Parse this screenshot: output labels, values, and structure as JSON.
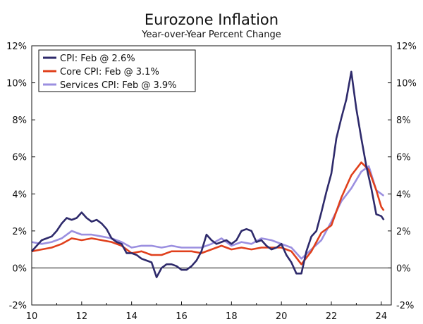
{
  "chart_data": {
    "type": "line",
    "title": "Eurozone Inflation",
    "subtitle": "Year-over-Year Percent Change",
    "xlabel": "",
    "ylabel": "",
    "xlim": [
      2010,
      2024.4
    ],
    "ylim": [
      -2,
      12
    ],
    "x_ticks": [
      2010,
      2012,
      2014,
      2016,
      2018,
      2020,
      2022,
      2024
    ],
    "x_tick_labels": [
      "10",
      "12",
      "14",
      "16",
      "18",
      "20",
      "22",
      "24"
    ],
    "y_ticks": [
      -2,
      0,
      2,
      4,
      6,
      8,
      10,
      12
    ],
    "y_tick_labels": [
      "-2%",
      "0%",
      "2%",
      "4%",
      "6%",
      "8%",
      "10%",
      "12%"
    ],
    "legend_position": "top-left",
    "series": [
      {
        "name": "CPI: Feb @ 2.6%",
        "color": "#2e2a6b",
        "points": [
          [
            2010.0,
            0.9
          ],
          [
            2010.2,
            1.2
          ],
          [
            2010.4,
            1.5
          ],
          [
            2010.6,
            1.6
          ],
          [
            2010.8,
            1.7
          ],
          [
            2011.0,
            2.0
          ],
          [
            2011.2,
            2.4
          ],
          [
            2011.4,
            2.7
          ],
          [
            2011.6,
            2.6
          ],
          [
            2011.8,
            2.7
          ],
          [
            2012.0,
            3.0
          ],
          [
            2012.2,
            2.7
          ],
          [
            2012.4,
            2.5
          ],
          [
            2012.6,
            2.6
          ],
          [
            2012.8,
            2.4
          ],
          [
            2013.0,
            2.1
          ],
          [
            2013.2,
            1.6
          ],
          [
            2013.4,
            1.4
          ],
          [
            2013.6,
            1.3
          ],
          [
            2013.8,
            0.8
          ],
          [
            2014.0,
            0.8
          ],
          [
            2014.2,
            0.7
          ],
          [
            2014.4,
            0.5
          ],
          [
            2014.6,
            0.4
          ],
          [
            2014.8,
            0.3
          ],
          [
            2015.0,
            -0.5
          ],
          [
            2015.2,
            0.0
          ],
          [
            2015.4,
            0.2
          ],
          [
            2015.6,
            0.2
          ],
          [
            2015.8,
            0.1
          ],
          [
            2016.0,
            -0.1
          ],
          [
            2016.2,
            -0.1
          ],
          [
            2016.4,
            0.1
          ],
          [
            2016.6,
            0.4
          ],
          [
            2016.8,
            0.9
          ],
          [
            2017.0,
            1.8
          ],
          [
            2017.2,
            1.5
          ],
          [
            2017.4,
            1.3
          ],
          [
            2017.6,
            1.4
          ],
          [
            2017.8,
            1.5
          ],
          [
            2018.0,
            1.3
          ],
          [
            2018.2,
            1.5
          ],
          [
            2018.4,
            2.0
          ],
          [
            2018.6,
            2.1
          ],
          [
            2018.8,
            2.0
          ],
          [
            2019.0,
            1.4
          ],
          [
            2019.2,
            1.5
          ],
          [
            2019.4,
            1.2
          ],
          [
            2019.6,
            1.0
          ],
          [
            2019.8,
            1.1
          ],
          [
            2020.0,
            1.3
          ],
          [
            2020.2,
            0.7
          ],
          [
            2020.4,
            0.3
          ],
          [
            2020.6,
            -0.3
          ],
          [
            2020.8,
            -0.3
          ],
          [
            2021.0,
            0.9
          ],
          [
            2021.2,
            1.7
          ],
          [
            2021.4,
            2.0
          ],
          [
            2021.6,
            3.0
          ],
          [
            2021.8,
            4.1
          ],
          [
            2022.0,
            5.1
          ],
          [
            2022.2,
            7.0
          ],
          [
            2022.4,
            8.1
          ],
          [
            2022.6,
            9.1
          ],
          [
            2022.8,
            10.6
          ],
          [
            2023.0,
            8.6
          ],
          [
            2023.2,
            7.0
          ],
          [
            2023.4,
            5.5
          ],
          [
            2023.6,
            4.3
          ],
          [
            2023.8,
            2.9
          ],
          [
            2024.0,
            2.8
          ],
          [
            2024.1,
            2.6
          ]
        ]
      },
      {
        "name": "Core CPI: Feb @ 3.1%",
        "color": "#e0401c",
        "points": [
          [
            2010.0,
            0.9
          ],
          [
            2010.4,
            1.0
          ],
          [
            2010.8,
            1.1
          ],
          [
            2011.2,
            1.3
          ],
          [
            2011.6,
            1.6
          ],
          [
            2012.0,
            1.5
          ],
          [
            2012.4,
            1.6
          ],
          [
            2012.8,
            1.5
          ],
          [
            2013.2,
            1.4
          ],
          [
            2013.6,
            1.2
          ],
          [
            2014.0,
            0.8
          ],
          [
            2014.4,
            0.9
          ],
          [
            2014.8,
            0.7
          ],
          [
            2015.2,
            0.7
          ],
          [
            2015.6,
            0.9
          ],
          [
            2016.0,
            0.9
          ],
          [
            2016.4,
            0.9
          ],
          [
            2016.8,
            0.8
          ],
          [
            2017.2,
            1.0
          ],
          [
            2017.6,
            1.2
          ],
          [
            2018.0,
            1.0
          ],
          [
            2018.4,
            1.1
          ],
          [
            2018.8,
            1.0
          ],
          [
            2019.2,
            1.1
          ],
          [
            2019.6,
            1.1
          ],
          [
            2020.0,
            1.1
          ],
          [
            2020.4,
            0.9
          ],
          [
            2020.8,
            0.2
          ],
          [
            2021.2,
            0.9
          ],
          [
            2021.6,
            1.9
          ],
          [
            2022.0,
            2.3
          ],
          [
            2022.4,
            3.8
          ],
          [
            2022.8,
            5.0
          ],
          [
            2023.2,
            5.7
          ],
          [
            2023.5,
            5.3
          ],
          [
            2023.8,
            4.2
          ],
          [
            2024.0,
            3.3
          ],
          [
            2024.1,
            3.1
          ]
        ]
      },
      {
        "name": "Services CPI: Feb @ 3.9%",
        "color": "#9b8fe0",
        "points": [
          [
            2010.0,
            1.4
          ],
          [
            2010.4,
            1.3
          ],
          [
            2010.8,
            1.4
          ],
          [
            2011.2,
            1.6
          ],
          [
            2011.6,
            2.0
          ],
          [
            2012.0,
            1.8
          ],
          [
            2012.4,
            1.8
          ],
          [
            2012.8,
            1.7
          ],
          [
            2013.2,
            1.6
          ],
          [
            2013.6,
            1.4
          ],
          [
            2014.0,
            1.1
          ],
          [
            2014.4,
            1.2
          ],
          [
            2014.8,
            1.2
          ],
          [
            2015.2,
            1.1
          ],
          [
            2015.6,
            1.2
          ],
          [
            2016.0,
            1.1
          ],
          [
            2016.4,
            1.1
          ],
          [
            2016.8,
            1.1
          ],
          [
            2017.2,
            1.3
          ],
          [
            2017.6,
            1.6
          ],
          [
            2018.0,
            1.2
          ],
          [
            2018.4,
            1.4
          ],
          [
            2018.8,
            1.3
          ],
          [
            2019.2,
            1.6
          ],
          [
            2019.6,
            1.5
          ],
          [
            2020.0,
            1.3
          ],
          [
            2020.4,
            1.1
          ],
          [
            2020.8,
            0.5
          ],
          [
            2021.2,
            1.0
          ],
          [
            2021.6,
            1.5
          ],
          [
            2022.0,
            2.5
          ],
          [
            2022.4,
            3.6
          ],
          [
            2022.8,
            4.3
          ],
          [
            2023.2,
            5.2
          ],
          [
            2023.5,
            5.5
          ],
          [
            2023.8,
            4.2
          ],
          [
            2024.0,
            4.0
          ],
          [
            2024.1,
            3.9
          ]
        ]
      }
    ]
  }
}
